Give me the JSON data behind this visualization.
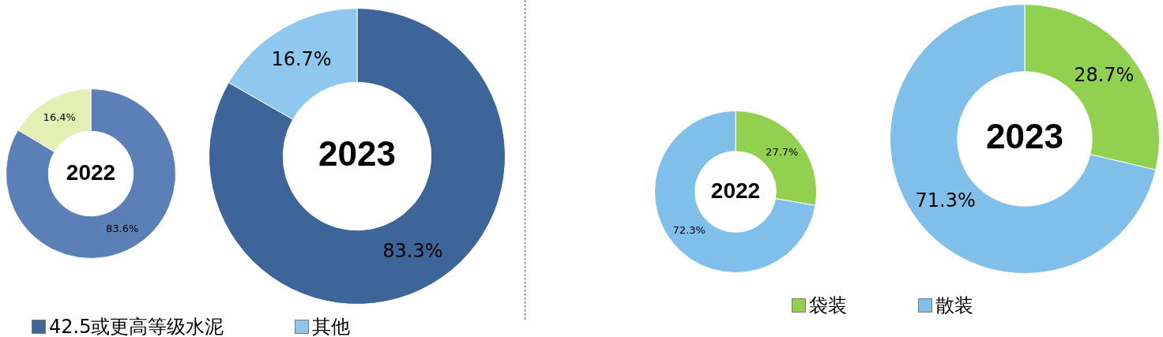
{
  "chart_data": [
    {
      "type": "donut",
      "title": "2022",
      "categories": [
        null,
        null
      ],
      "values": [
        83.6,
        16.4
      ],
      "colors": [
        "#5b80b8",
        "#e4efb4"
      ],
      "value_labels": [
        "83.6%",
        "16.4%"
      ]
    },
    {
      "type": "donut",
      "title": "2023",
      "categories": [
        "42.5或更高等级水泥",
        "其他"
      ],
      "values": [
        83.3,
        16.7
      ],
      "colors": [
        "#3e6599",
        "#8ec8ee"
      ],
      "value_labels": [
        "83.3%",
        "16.7%"
      ],
      "legend": "bottom"
    },
    {
      "type": "donut",
      "title": "2022",
      "categories": [
        null,
        null
      ],
      "values": [
        27.7,
        72.3
      ],
      "colors": [
        "#92d050",
        "#80bfea"
      ],
      "value_labels": [
        "27.7%",
        "72.3%"
      ]
    },
    {
      "type": "donut",
      "title": "2023",
      "categories": [
        "袋装",
        "散装"
      ],
      "values": [
        28.7,
        71.3
      ],
      "colors": [
        "#92d050",
        "#80bfea"
      ],
      "value_labels": [
        "28.7%",
        "71.3%"
      ],
      "legend": "bottom"
    }
  ]
}
